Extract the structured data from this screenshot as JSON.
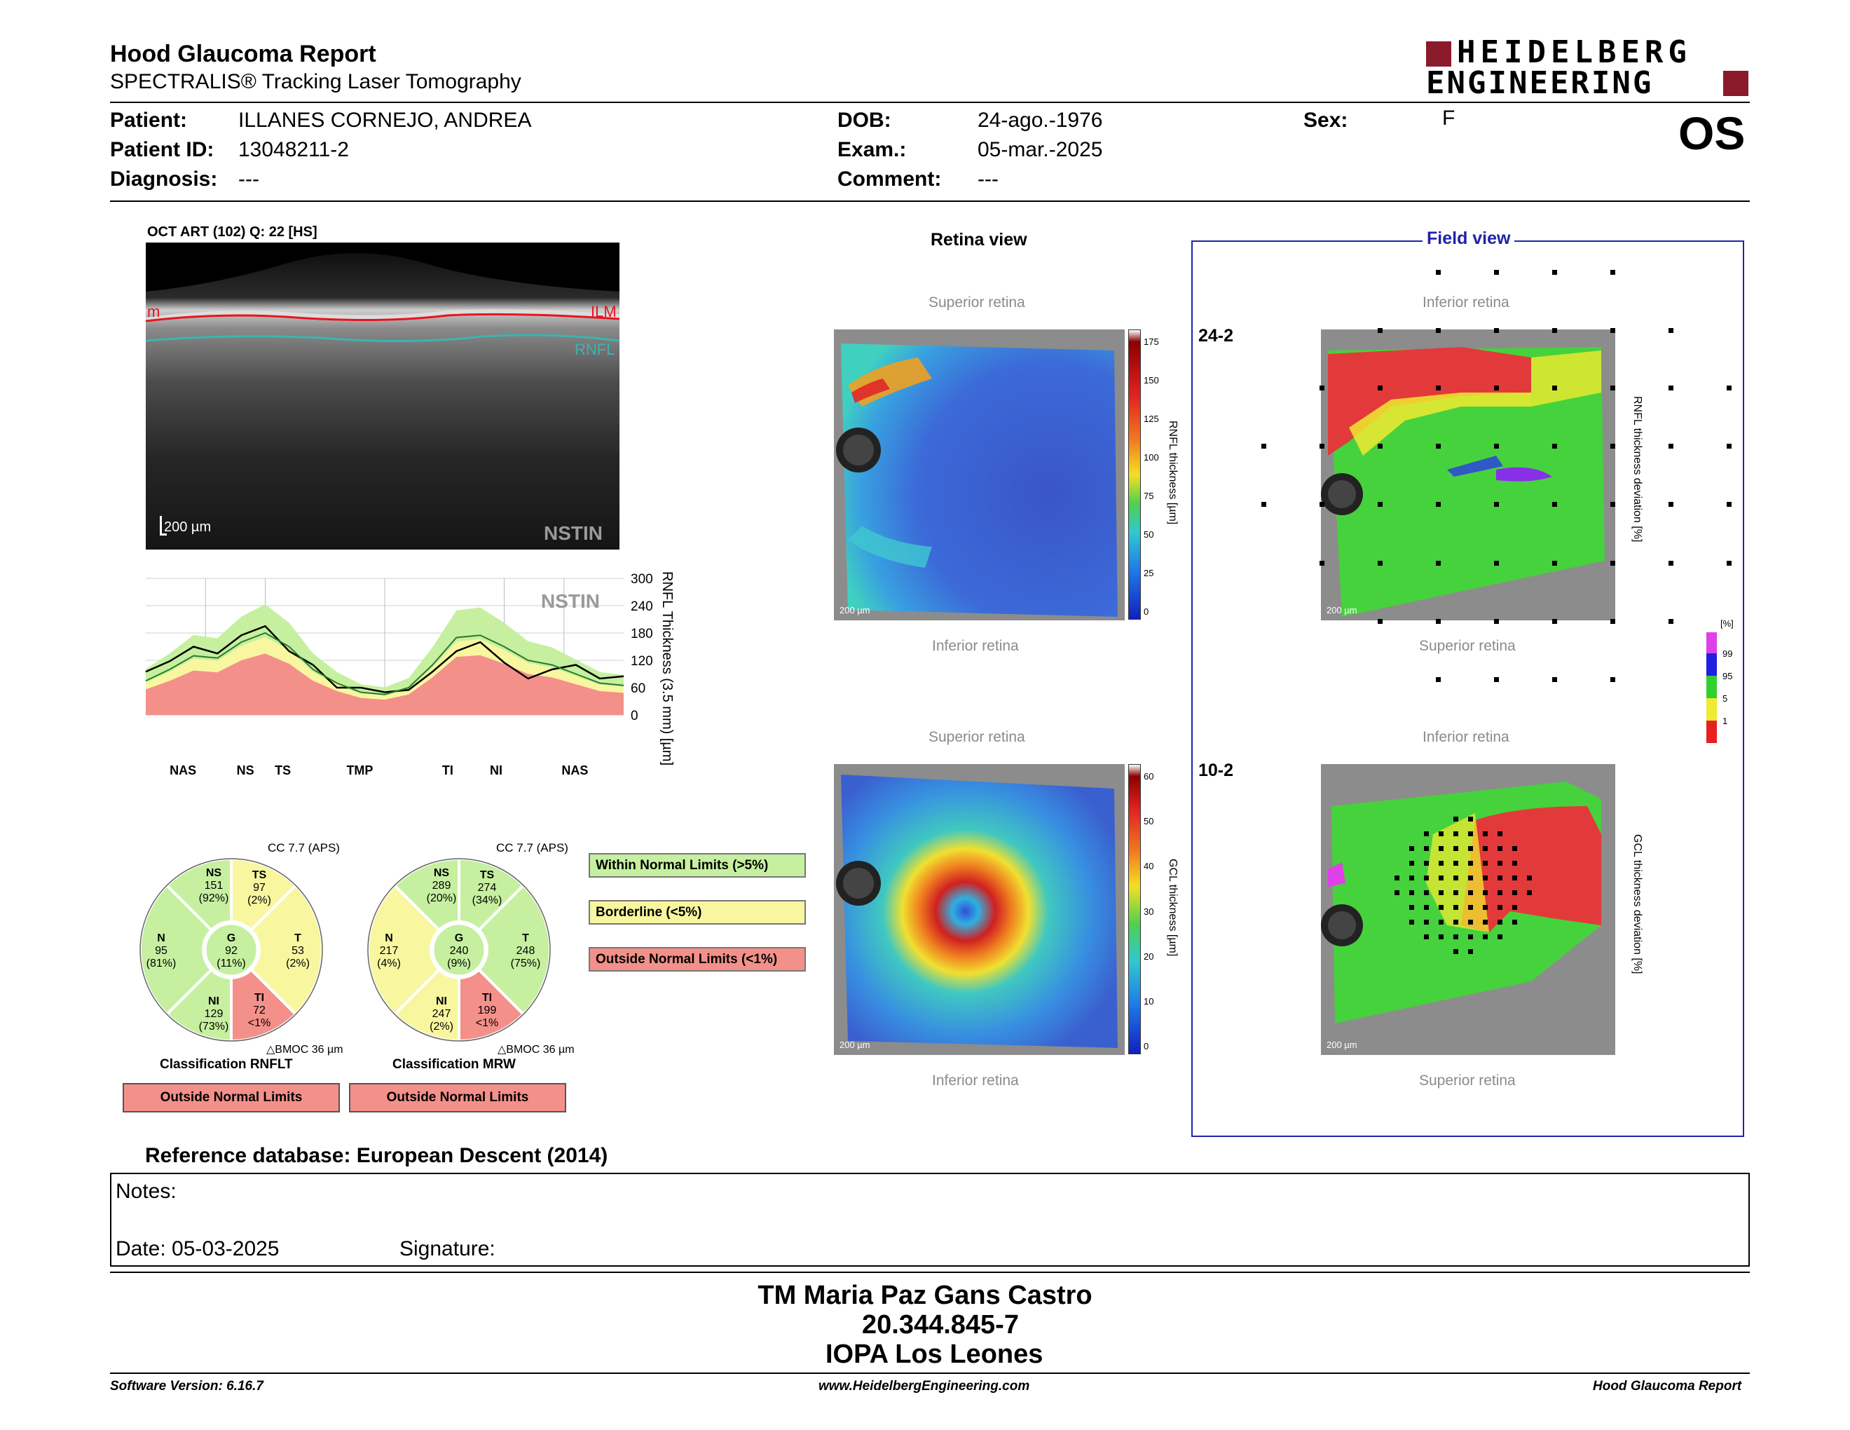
{
  "header": {
    "title": "Hood Glaucoma Report",
    "subtitle": "SPECTRALIS® Tracking Laser Tomography",
    "brand_line1": "HEIDELBERG",
    "brand_line2": "ENGINEERING",
    "eye": "OS",
    "brand_color": "#8b1a2b"
  },
  "patient": {
    "patient_label": "Patient:",
    "patient_value": "ILLANES CORNEJO, ANDREA",
    "id_label": "Patient ID:",
    "id_value": "13048211-2",
    "diagnosis_label": "Diagnosis:",
    "diagnosis_value": "---",
    "dob_label": "DOB:",
    "dob_value": "24-ago.-1976",
    "exam_label": "Exam.:",
    "exam_value": "05-mar.-2025",
    "comment_label": "Comment:",
    "comment_value": "---",
    "sex_label": "Sex:",
    "sex_value": "F"
  },
  "oct": {
    "title": "OCT ART (102) Q: 22 [HS]",
    "ilm": "ILM",
    "rnfl": "RNFL",
    "scale": "200 µm",
    "mode": "NSTIN",
    "left_edge_label": "m"
  },
  "profile_chart": {
    "watermark": "NSTIN",
    "ylabel": "RNFL Thickness (3.5 mm) [µm]",
    "yticks": [
      "300",
      "240",
      "180",
      "120",
      "60",
      "0"
    ],
    "xlabels": [
      "NAS",
      "NS",
      "TS",
      "TMP",
      "TI",
      "NI",
      "NAS"
    ]
  },
  "chart_data": {
    "type": "line",
    "title": "",
    "xlabel": "",
    "ylabel": "RNFL Thickness (3.5 mm) [µm]",
    "ylim": [
      0,
      300
    ],
    "x": [
      0,
      0.05,
      0.1,
      0.15,
      0.2,
      0.25,
      0.3,
      0.35,
      0.4,
      0.45,
      0.5,
      0.55,
      0.6,
      0.65,
      0.7,
      0.75,
      0.8,
      0.85,
      0.9,
      0.95,
      1.0
    ],
    "x_tick_labels": [
      "NAS",
      "NS",
      "TS",
      "TMP",
      "TI",
      "NI",
      "NAS"
    ],
    "series": [
      {
        "values": [
          95,
          118,
          150,
          135,
          175,
          195,
          140,
          110,
          60,
          60,
          50,
          55,
          95,
          140,
          160,
          115,
          80,
          100,
          110,
          80,
          85
        ]
      },
      {
        "values": [
          75,
          100,
          130,
          125,
          160,
          180,
          150,
          100,
          70,
          50,
          45,
          60,
          110,
          170,
          175,
          150,
          120,
          110,
          90,
          70,
          65
        ]
      }
    ],
    "grid": true
  },
  "classification": {
    "cc_rnflt": "CC 7.7 (APS)",
    "cc_mrw": "CC 7.7 (APS)",
    "rnflt": {
      "NS": {
        "name": "NS",
        "v": "151",
        "p": "(92%)"
      },
      "TS": {
        "name": "TS",
        "v": "97",
        "p": "(2%)"
      },
      "N": {
        "name": "N",
        "v": "95",
        "p": "(81%)"
      },
      "G": {
        "name": "G",
        "v": "92",
        "p": "(11%)"
      },
      "T": {
        "name": "T",
        "v": "53",
        "p": "(2%)"
      },
      "NI": {
        "name": "NI",
        "v": "129",
        "p": "(73%)"
      },
      "TI": {
        "name": "TI",
        "v": "72",
        "p": "<1%"
      }
    },
    "mrw": {
      "NS": {
        "name": "NS",
        "v": "289",
        "p": "(20%)"
      },
      "TS": {
        "name": "TS",
        "v": "274",
        "p": "(34%)"
      },
      "N": {
        "name": "N",
        "v": "217",
        "p": "(4%)"
      },
      "G": {
        "name": "G",
        "v": "240",
        "p": "(9%)"
      },
      "T": {
        "name": "T",
        "v": "248",
        "p": "(75%)"
      },
      "NI": {
        "name": "NI",
        "v": "247",
        "p": "(2%)"
      },
      "TI": {
        "name": "TI",
        "v": "199",
        "p": "<1%"
      }
    },
    "bmo_rnflt": "△BMOC 36 µm",
    "bmo_mrw": "△BMOC 36 µm",
    "title_rnflt": "Classification RNFLT",
    "title_mrw": "Classification MRW",
    "result_rnflt": "Outside Normal Limits",
    "result_mrw": "Outside Normal Limits",
    "legend_within": "Within Normal Limits (>5%)",
    "legend_border": "Borderline (<5%)",
    "legend_outside": "Outside Normal Limits (<1%)",
    "colors": {
      "green": "#c6f0a0",
      "yellow": "#f8f7a0",
      "red": "#f4908a"
    }
  },
  "retina_view": {
    "title": "Retina view",
    "sup1": "Superior retina",
    "inf1": "Inferior retina",
    "sup2": "Superior retina",
    "inf2": "Inferior retina",
    "scale": "200 µm",
    "rnfl_scale_label": "RNFL thickness [µm]",
    "rnfl_ticks": [
      "175",
      "150",
      "125",
      "100",
      "75",
      "50",
      "25",
      "0"
    ],
    "gcl_scale_label": "GCL thickness [µm]",
    "gcl_ticks": [
      "60",
      "50",
      "40",
      "30",
      "20",
      "10",
      "0"
    ]
  },
  "field_view": {
    "title": "Field view",
    "label_242": "24-2",
    "label_102": "10-2",
    "inf1": "Inferior retina",
    "sup1": "Superior retina",
    "inf2": "Inferior retina",
    "sup2": "Superior retina",
    "rnfl_dev_label": "RNFL thickness deviation [%]",
    "gcl_dev_label": "GCL thickness deviation [%]",
    "scale": "200 µm",
    "pct_unit": "[%]",
    "pct_ticks": [
      "99",
      "95",
      "5",
      "1"
    ],
    "frame_color": "#2222aa"
  },
  "footer": {
    "refdb": "Reference database: European Descent (2014)",
    "notes": "Notes:",
    "date": "Date: 05-03-2025",
    "signature": "Signature:",
    "stamp_name": "TM Maria Paz Gans Castro",
    "stamp_id": "20.344.845-7",
    "stamp_org": "IOPA Los Leones",
    "software": "Software Version: 6.16.7",
    "website": "www.HeidelbergEngineering.com",
    "report_name": "Hood Glaucoma Report"
  }
}
